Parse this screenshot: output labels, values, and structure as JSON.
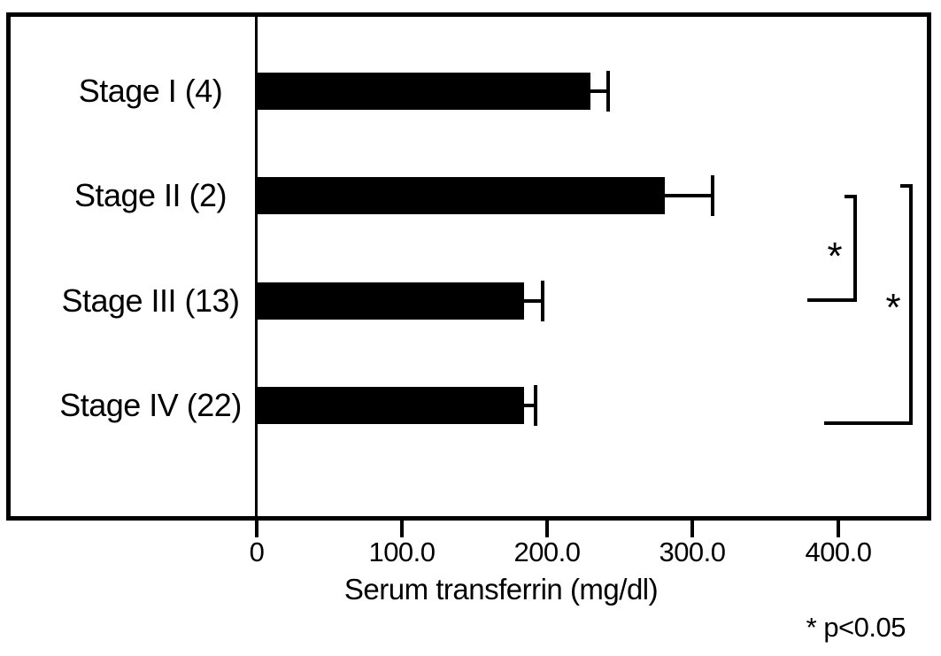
{
  "chart_data": {
    "type": "bar",
    "orientation": "horizontal",
    "title": "",
    "xlabel": "Serum transferrin (mg/dl)",
    "ylabel": "",
    "categories": [
      "Stage I (4)",
      "Stage II (2)",
      "Stage III (13)",
      "Stage IV (22)"
    ],
    "values": [
      229,
      280,
      183,
      183
    ],
    "errors": [
      12,
      33,
      13,
      8
    ],
    "error_direction": "plus",
    "bar_color": "#000000",
    "background_color": "#ffffff",
    "grid": false,
    "legend": false,
    "xlim": [
      0,
      464
    ],
    "x_ticks": [
      {
        "label": "0",
        "value": 0
      },
      {
        "label": "100.0",
        "value": 100
      },
      {
        "label": "200.0",
        "value": 200
      },
      {
        "label": "300.0",
        "value": 300
      },
      {
        "label": "400.0",
        "value": 400
      }
    ],
    "significance": {
      "note": "* p<0.05",
      "comparisons": [
        {
          "from": "Stage II (2)",
          "to": "Stage III (13)",
          "label": "*"
        },
        {
          "from": "Stage II (2)",
          "to": "Stage IV (22)",
          "label": "*"
        }
      ]
    }
  }
}
